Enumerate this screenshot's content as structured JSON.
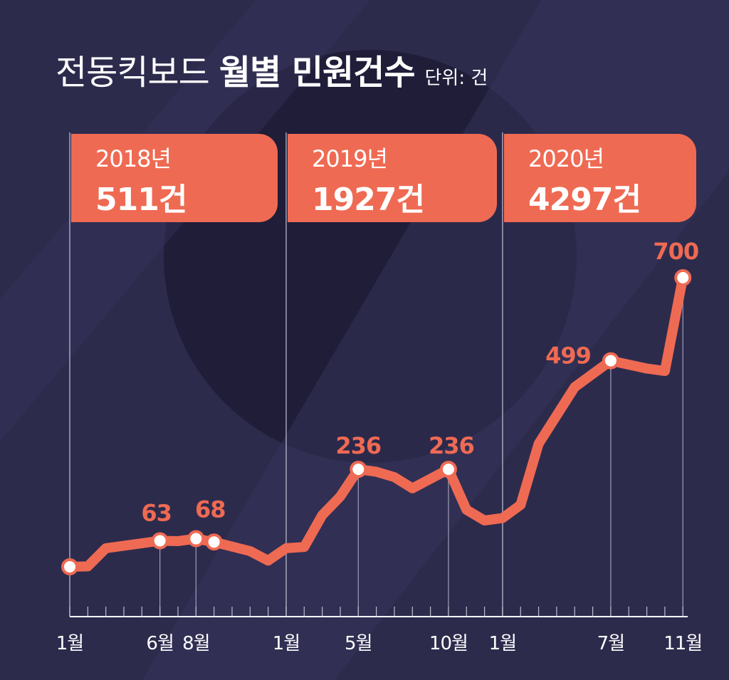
{
  "title": {
    "light": "전동킥보드",
    "bold": "월별 민원건수",
    "unit": "단위: 건"
  },
  "banners": [
    {
      "year": "2018년",
      "total": "511건"
    },
    {
      "year": "2019년",
      "total": "1927건"
    },
    {
      "year": "2020년",
      "total": "4297건"
    }
  ],
  "colors": {
    "background": "#2d2b4c",
    "accent": "#ef6a53",
    "marker": "#ffffff",
    "grid": "#cfcfe0"
  },
  "chart_data": {
    "type": "line",
    "title": "전동킥보드 월별 민원건수",
    "unit": "단위: 건",
    "x_tick_labels": [
      "1월",
      "6월",
      "8월",
      "1월",
      "5월",
      "10월",
      "1월",
      "7월",
      "11월"
    ],
    "series": [
      {
        "values": [
          0,
          1,
          45,
          63,
          62,
          68,
          60,
          38,
          15,
          45,
          48,
          125,
          170,
          236,
          230,
          217,
          190,
          236,
          138,
          112,
          118,
          150,
          298,
          435,
          499,
          480,
          474,
          700
        ]
      }
    ],
    "months": [
      "2018-01",
      "2018-02",
      "2018-03",
      "2018-06",
      "2018-07",
      "2018-08",
      "2018-09",
      "2018-11",
      "2018-12",
      "2019-01",
      "2019-02",
      "2019-03",
      "2019-04",
      "2019-05",
      "2019-06",
      "2019-07",
      "2019-08",
      "2019-10",
      "2019-11",
      "2019-12",
      "2020-01",
      "2020-02",
      "2020-03",
      "2020-05",
      "2020-07",
      "2020-09",
      "2020-10",
      "2020-11"
    ],
    "labeled_points": [
      {
        "month": "2018-06",
        "label": "63"
      },
      {
        "month": "2018-08",
        "label": "68"
      },
      {
        "month": "2019-05",
        "label": "236"
      },
      {
        "month": "2019-10",
        "label": "236"
      },
      {
        "month": "2020-07",
        "label": "499"
      },
      {
        "month": "2020-11",
        "label": "700"
      }
    ],
    "markers": [
      "2018-01",
      "2018-06",
      "2018-08",
      "2018-09",
      "2019-05",
      "2019-10",
      "2020-07",
      "2020-11"
    ],
    "drop_lines": [
      "2018-06",
      "2018-08",
      "2019-05",
      "2019-10",
      "2020-07",
      "2020-11"
    ],
    "year_separators": [
      "2018-01",
      "2019-01",
      "2020-01"
    ],
    "ylim": [
      0,
      700
    ],
    "grid": false,
    "legend": "none"
  }
}
